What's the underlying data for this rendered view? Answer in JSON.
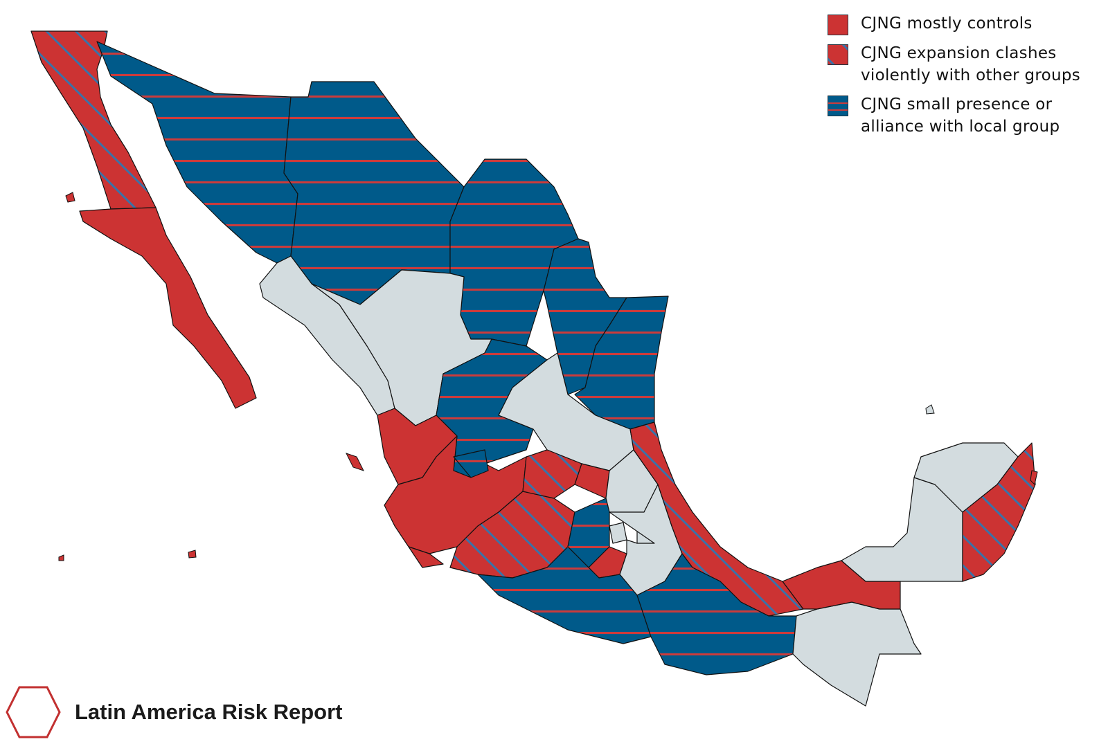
{
  "map": {
    "colors": {
      "controls": "#cc3333",
      "clashes_base": "#cc3333",
      "clashes_hatch": "#3a72a8",
      "presence_base": "#005a8a",
      "presence_stripe": "#cc3b3b",
      "none": "#d3dcdf",
      "border": "#111111",
      "background": "#ffffff"
    },
    "regions": [
      {
        "name": "Baja California",
        "status": "clashes"
      },
      {
        "name": "Baja California Sur",
        "status": "controls"
      },
      {
        "name": "Sonora",
        "status": "presence"
      },
      {
        "name": "Chihuahua",
        "status": "presence"
      },
      {
        "name": "Coahuila",
        "status": "presence"
      },
      {
        "name": "Nuevo León",
        "status": "presence"
      },
      {
        "name": "Tamaulipas",
        "status": "presence"
      },
      {
        "name": "Sinaloa",
        "status": "none"
      },
      {
        "name": "Durango",
        "status": "none"
      },
      {
        "name": "Zacatecas",
        "status": "presence"
      },
      {
        "name": "San Luis Potosí",
        "status": "none"
      },
      {
        "name": "Nayarit",
        "status": "controls"
      },
      {
        "name": "Jalisco",
        "status": "controls"
      },
      {
        "name": "Aguascalientes",
        "status": "presence"
      },
      {
        "name": "Colima",
        "status": "controls"
      },
      {
        "name": "Michoacán",
        "status": "clashes"
      },
      {
        "name": "Guanajuato",
        "status": "clashes"
      },
      {
        "name": "Querétaro",
        "status": "controls"
      },
      {
        "name": "Hidalgo",
        "status": "none"
      },
      {
        "name": "Estado de México",
        "status": "presence"
      },
      {
        "name": "Ciudad de México",
        "status": "none"
      },
      {
        "name": "Morelos",
        "status": "controls"
      },
      {
        "name": "Tlaxcala",
        "status": "none"
      },
      {
        "name": "Puebla",
        "status": "none"
      },
      {
        "name": "Veracruz",
        "status": "clashes"
      },
      {
        "name": "Guerrero",
        "status": "presence"
      },
      {
        "name": "Oaxaca",
        "status": "presence"
      },
      {
        "name": "Chiapas",
        "status": "none"
      },
      {
        "name": "Tabasco",
        "status": "controls"
      },
      {
        "name": "Campeche",
        "status": "none"
      },
      {
        "name": "Yucatán",
        "status": "none"
      },
      {
        "name": "Quintana Roo",
        "status": "clashes"
      }
    ]
  },
  "legend": [
    {
      "key": "controls",
      "label_line1": "CJNG mostly controls",
      "label_line2": ""
    },
    {
      "key": "clashes",
      "label_line1": "CJNG expansion clashes",
      "label_line2": "violently with other groups"
    },
    {
      "key": "presence",
      "label_line1": "CJNG small presence or",
      "label_line2": "alliance with local group"
    }
  ],
  "branding": {
    "name": "Latin America Risk Report",
    "logo_icon": "hexagon-outline-icon",
    "logo_color": "#c23030"
  }
}
